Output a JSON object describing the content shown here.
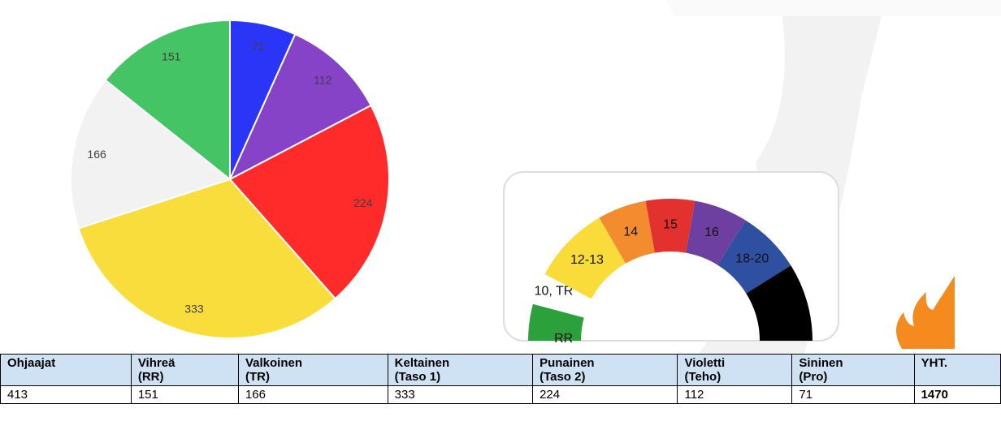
{
  "chart_data": {
    "type": "pie",
    "values": [
      71,
      112,
      224,
      333,
      166,
      151
    ],
    "colors": [
      "#2b35f7",
      "#8643c8",
      "#ff2a2a",
      "#f9dd3c",
      "#f2f2f2",
      "#44c464"
    ]
  },
  "gauge": {
    "segments": [
      {
        "label": "RR",
        "color": "#2ca03a"
      },
      {
        "label": "10, TR",
        "color": "#ffffff"
      },
      {
        "label": "12-13",
        "color": "#f9dc3a"
      },
      {
        "label": "14",
        "color": "#f28c2e"
      },
      {
        "label": "15",
        "color": "#e3312f"
      },
      {
        "label": "16",
        "color": "#6d3fa0"
      },
      {
        "label": "18-20",
        "color": "#2f4fa0"
      },
      {
        "color": "#000000"
      }
    ]
  },
  "table": {
    "header": [
      "Ohjaajat",
      "Vihreä\n(RR)",
      "Valkoinen\n(TR)",
      "Keltainen\n(Taso 1)",
      "Punainen\n(Taso 2)",
      "Violetti\n(Teho)",
      "Sininen\n(Pro)",
      "YHT."
    ],
    "rows": [
      [
        "413",
        "151",
        "166",
        "333",
        "224",
        "112",
        "71",
        "1470"
      ]
    ]
  }
}
